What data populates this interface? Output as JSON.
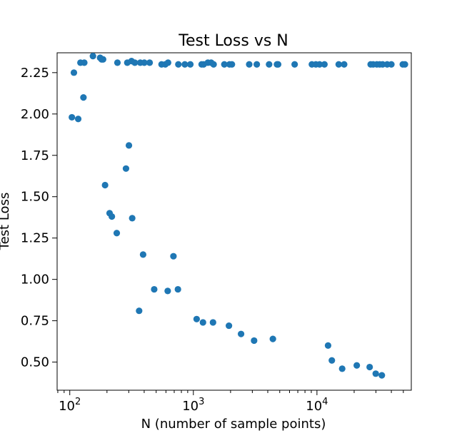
{
  "chart_data": {
    "type": "scatter",
    "title": "Test Loss vs N",
    "xlabel": "N (number of sample points)",
    "ylabel": "Test Loss",
    "xscale": "log",
    "xlim": [
      79,
      58000
    ],
    "ylim": [
      0.33,
      2.37
    ],
    "grid": false,
    "legend": "none",
    "color": "#1f77b4",
    "x_ticks": [
      {
        "value": 100,
        "base": "10",
        "exp": "2"
      },
      {
        "value": 1000,
        "base": "10",
        "exp": "3"
      },
      {
        "value": 10000,
        "base": "10",
        "exp": "4"
      }
    ],
    "y_ticks": [
      {
        "value": 0.5,
        "label": "0.50"
      },
      {
        "value": 0.75,
        "label": "0.75"
      },
      {
        "value": 1.0,
        "label": "1.00"
      },
      {
        "value": 1.25,
        "label": "1.25"
      },
      {
        "value": 1.5,
        "label": "1.50"
      },
      {
        "value": 1.75,
        "label": "1.75"
      },
      {
        "value": 2.0,
        "label": "2.00"
      },
      {
        "value": 2.25,
        "label": "2.25"
      }
    ],
    "points": [
      {
        "x": 104,
        "y": 1.98
      },
      {
        "x": 108,
        "y": 2.25
      },
      {
        "x": 117,
        "y": 1.97
      },
      {
        "x": 122,
        "y": 2.31
      },
      {
        "x": 129,
        "y": 2.1
      },
      {
        "x": 131,
        "y": 2.31
      },
      {
        "x": 154,
        "y": 2.35
      },
      {
        "x": 176,
        "y": 2.34
      },
      {
        "x": 181,
        "y": 2.33
      },
      {
        "x": 186,
        "y": 2.33
      },
      {
        "x": 193,
        "y": 1.57
      },
      {
        "x": 210,
        "y": 1.4
      },
      {
        "x": 219,
        "y": 1.38
      },
      {
        "x": 240,
        "y": 1.28
      },
      {
        "x": 243,
        "y": 2.31
      },
      {
        "x": 285,
        "y": 1.67
      },
      {
        "x": 292,
        "y": 2.31
      },
      {
        "x": 301,
        "y": 1.81
      },
      {
        "x": 316,
        "y": 2.32
      },
      {
        "x": 320,
        "y": 1.37
      },
      {
        "x": 336,
        "y": 2.31
      },
      {
        "x": 364,
        "y": 0.81
      },
      {
        "x": 372,
        "y": 2.31
      },
      {
        "x": 392,
        "y": 1.15
      },
      {
        "x": 401,
        "y": 2.31
      },
      {
        "x": 443,
        "y": 2.31
      },
      {
        "x": 482,
        "y": 0.94
      },
      {
        "x": 553,
        "y": 2.3
      },
      {
        "x": 593,
        "y": 2.3
      },
      {
        "x": 620,
        "y": 0.93
      },
      {
        "x": 624,
        "y": 2.31
      },
      {
        "x": 690,
        "y": 1.14
      },
      {
        "x": 750,
        "y": 0.94
      },
      {
        "x": 756,
        "y": 2.3
      },
      {
        "x": 853,
        "y": 2.3
      },
      {
        "x": 945,
        "y": 2.3
      },
      {
        "x": 1063,
        "y": 0.76
      },
      {
        "x": 1167,
        "y": 2.3
      },
      {
        "x": 1196,
        "y": 0.74
      },
      {
        "x": 1211,
        "y": 2.3
      },
      {
        "x": 1310,
        "y": 2.31
      },
      {
        "x": 1393,
        "y": 2.31
      },
      {
        "x": 1442,
        "y": 0.74
      },
      {
        "x": 1458,
        "y": 2.3
      },
      {
        "x": 1781,
        "y": 2.3
      },
      {
        "x": 1940,
        "y": 0.72
      },
      {
        "x": 1962,
        "y": 2.3
      },
      {
        "x": 2050,
        "y": 2.3
      },
      {
        "x": 2432,
        "y": 0.67
      },
      {
        "x": 2831,
        "y": 2.3
      },
      {
        "x": 3100,
        "y": 0.63
      },
      {
        "x": 3260,
        "y": 2.3
      },
      {
        "x": 4100,
        "y": 2.3
      },
      {
        "x": 4400,
        "y": 0.64
      },
      {
        "x": 4750,
        "y": 2.3
      },
      {
        "x": 4850,
        "y": 2.3
      },
      {
        "x": 6600,
        "y": 2.3
      },
      {
        "x": 9100,
        "y": 2.3
      },
      {
        "x": 9800,
        "y": 2.3
      },
      {
        "x": 10500,
        "y": 2.3
      },
      {
        "x": 11500,
        "y": 2.3
      },
      {
        "x": 12300,
        "y": 0.6
      },
      {
        "x": 13200,
        "y": 0.51
      },
      {
        "x": 15000,
        "y": 2.3
      },
      {
        "x": 16000,
        "y": 0.46
      },
      {
        "x": 16600,
        "y": 2.3
      },
      {
        "x": 21000,
        "y": 0.48
      },
      {
        "x": 26700,
        "y": 0.47
      },
      {
        "x": 27200,
        "y": 2.3
      },
      {
        "x": 28500,
        "y": 2.3
      },
      {
        "x": 29900,
        "y": 0.43
      },
      {
        "x": 30500,
        "y": 2.3
      },
      {
        "x": 32200,
        "y": 2.3
      },
      {
        "x": 33500,
        "y": 0.42
      },
      {
        "x": 34000,
        "y": 2.3
      },
      {
        "x": 37000,
        "y": 2.3
      },
      {
        "x": 40000,
        "y": 2.3
      },
      {
        "x": 49500,
        "y": 2.3
      },
      {
        "x": 51500,
        "y": 2.3
      }
    ]
  }
}
